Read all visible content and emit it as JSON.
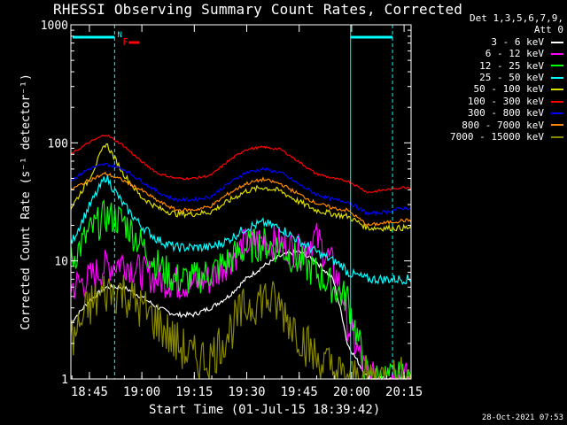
{
  "title": "RHESSI Observing Summary Count Rates, Corrected",
  "x_axis_label": "Start Time (01-Jul-15 18:39:42)",
  "y_axis_label": "Corrected Count Rate (s⁻¹ detector⁻¹)",
  "timestamp": "28-Oct-2021 07:53",
  "legend_header": [
    "Det 1,3,5,6,7,9,",
    "Att 0"
  ],
  "flags": {
    "n_label": "N",
    "f_label": "F",
    "flag_color": "#00ffff",
    "f_color": "#ff0000"
  },
  "chart_data": {
    "type": "line",
    "title": "RHESSI Observing Summary Count Rates, Corrected",
    "xlabel": "Start Time (01-Jul-15 18:39:42)",
    "ylabel": "Corrected Count Rate (s⁻¹ detector⁻¹)",
    "x_range": [
      "18:39:42",
      "20:17:00"
    ],
    "xticks": [
      "18:45",
      "19:00",
      "19:15",
      "19:30",
      "19:45",
      "20:00",
      "20:15"
    ],
    "y_scale": "log",
    "ylim": [
      1,
      1000
    ],
    "yticks": [
      "1",
      "10",
      "100",
      "1000"
    ],
    "legend_placement": "right",
    "x_minutes": [
      0,
      5,
      10,
      15,
      20,
      25,
      30,
      35,
      40,
      45,
      50,
      55,
      60,
      65,
      70,
      75,
      78,
      79,
      85,
      90,
      95
    ],
    "series": [
      {
        "name": "3 - 6 keV",
        "color": "#ffffff",
        "values": [
          3,
          4.5,
          6,
          6,
          5,
          4,
          3.5,
          3.5,
          4,
          5,
          7,
          9,
          11,
          12,
          10,
          7,
          3,
          2,
          1,
          1,
          1
        ]
      },
      {
        "name": "6 - 12 keV",
        "color": "#ff00ff",
        "values": [
          6,
          7,
          9,
          10,
          8,
          7,
          6.5,
          6.5,
          7,
          10,
          14,
          15,
          14,
          12,
          16,
          9,
          5,
          3,
          1,
          1,
          1
        ]
      },
      {
        "name": "12 - 25 keV",
        "color": "#00ff00",
        "values": [
          10,
          17,
          24,
          22,
          14,
          9,
          7,
          7,
          8,
          10,
          13,
          14,
          13,
          10,
          8,
          6,
          5,
          5,
          1,
          1,
          1
        ]
      },
      {
        "name": "25 - 50 keV",
        "color": "#00ffff",
        "values": [
          14,
          28,
          52,
          30,
          20,
          15,
          13,
          13,
          13,
          15,
          19,
          21,
          19,
          15,
          12,
          10,
          9,
          8,
          7,
          7,
          7
        ]
      },
      {
        "name": "50 - 100 keV",
        "color": "#dddd00",
        "values": [
          28,
          48,
          100,
          55,
          35,
          28,
          25,
          25,
          26,
          32,
          39,
          42,
          39,
          32,
          27,
          25,
          24,
          24,
          19,
          19,
          19
        ]
      },
      {
        "name": "100 - 300 keV",
        "color": "#ff0000",
        "values": [
          80,
          100,
          118,
          95,
          70,
          55,
          50,
          50,
          53,
          70,
          88,
          92,
          88,
          70,
          55,
          50,
          48,
          48,
          38,
          40,
          42
        ]
      },
      {
        "name": "300 - 800 keV",
        "color": "#0000ff",
        "values": [
          48,
          60,
          66,
          60,
          48,
          38,
          33,
          33,
          35,
          45,
          56,
          60,
          56,
          45,
          37,
          33,
          32,
          32,
          25,
          26,
          28
        ]
      },
      {
        "name": "800 - 7000 keV",
        "color": "#ff8800",
        "values": [
          40,
          48,
          55,
          48,
          40,
          32,
          27,
          27,
          29,
          37,
          45,
          49,
          45,
          37,
          31,
          28,
          27,
          27,
          20,
          21,
          22
        ]
      },
      {
        "name": "7000 - 15000 keV",
        "color": "#888800",
        "values": [
          2,
          4,
          5.5,
          5.5,
          4,
          3,
          2,
          1.5,
          1.5,
          2.5,
          4,
          5,
          4,
          2.5,
          1.5,
          1.2,
          1,
          1,
          1,
          1,
          1
        ]
      }
    ]
  }
}
